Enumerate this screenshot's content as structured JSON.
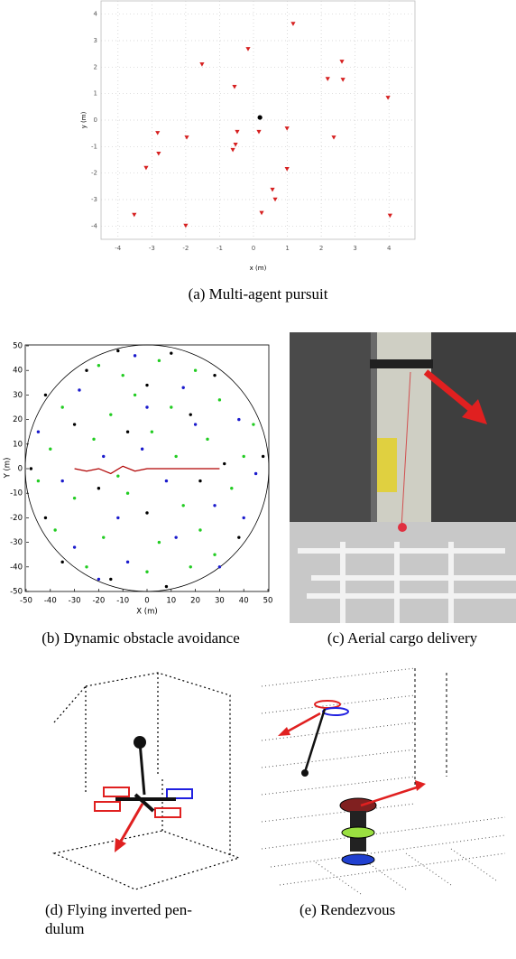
{
  "chart_data": [
    {
      "type": "scatter",
      "xlabel": "x (m)",
      "ylabel": "y (m)",
      "caption": "(a) Multi-agent pursuit",
      "xlim": [
        -4.5,
        4.5
      ],
      "ylim": [
        -4.5,
        4.5
      ],
      "xticks": [
        -4,
        -3,
        -2,
        -1,
        0,
        1,
        2,
        3,
        4
      ],
      "yticks": [
        -4,
        -3,
        -2,
        -1,
        0,
        1,
        2,
        3,
        4
      ],
      "grid": true,
      "series": [
        {
          "color": "#d62020",
          "marker": "triangle",
          "x": [
            1.17,
            -0.16,
            -1.52,
            2.61,
            2.19,
            2.64,
            -0.56,
            3.97,
            0.99,
            0.16,
            -0.48,
            -2.83,
            -1.97,
            2.37,
            -0.53,
            -0.61,
            -2.8,
            -3.17,
            0.99,
            0.56,
            0.64,
            0.24,
            -3.52,
            -2,
            4.03
          ],
          "y": [
            3.64,
            2.69,
            2.11,
            2.21,
            1.56,
            1.53,
            1.26,
            0.85,
            -0.31,
            -0.44,
            -0.44,
            -0.48,
            -0.65,
            -0.65,
            -0.92,
            -1.12,
            -1.26,
            -1.8,
            -1.84,
            -2.62,
            -2.99,
            -3.5,
            -3.57,
            -3.98,
            -3.6
          ]
        },
        {
          "color": "#000000",
          "marker": "dot",
          "x": [
            0.19
          ],
          "y": [
            0.1
          ]
        }
      ]
    },
    {
      "type": "scatter",
      "xlabel": "X (m)",
      "ylabel": "Y (m)",
      "caption": "(b) Dynamic obstacle avoidance",
      "xlim": [
        -50,
        50
      ],
      "ylim": [
        -50,
        50
      ],
      "xticks": [
        -50,
        -40,
        -30,
        -20,
        -10,
        0,
        10,
        20,
        30,
        40,
        50
      ],
      "yticks": [
        -50,
        -40,
        -30,
        -20,
        -10,
        0,
        10,
        20,
        30,
        40,
        50
      ],
      "grid": false,
      "series": [
        {
          "color": "#22cc22",
          "marker": "dot",
          "x": [
            -20,
            -10,
            5,
            20,
            -35,
            -15,
            10,
            30,
            -40,
            -22,
            2,
            25,
            40,
            -30,
            -8,
            15,
            35,
            -38,
            -18,
            5,
            22,
            -25,
            0,
            18,
            -5,
            12,
            -12,
            28,
            -45,
            44
          ],
          "y": [
            42,
            38,
            44,
            40,
            25,
            22,
            25,
            28,
            8,
            12,
            15,
            12,
            5,
            -12,
            -10,
            -15,
            -8,
            -25,
            -28,
            -30,
            -25,
            -40,
            -42,
            -40,
            30,
            5,
            -3,
            -35,
            -5,
            18
          ]
        },
        {
          "color": "#1a1acc",
          "marker": "dot",
          "x": [
            -5,
            15,
            -28,
            38,
            -45,
            -18,
            20,
            -35,
            8,
            45,
            -12,
            28,
            -30,
            12,
            -8,
            30,
            -2,
            -20,
            40,
            0
          ],
          "y": [
            46,
            33,
            32,
            20,
            15,
            5,
            18,
            -5,
            -5,
            -2,
            -20,
            -15,
            -32,
            -28,
            -38,
            -40,
            8,
            -45,
            -20,
            25
          ]
        },
        {
          "color": "#000000",
          "marker": "dot",
          "x": [
            -12,
            10,
            -25,
            28,
            -42,
            0,
            -30,
            18,
            -48,
            48,
            -20,
            22,
            -42,
            0,
            38,
            -15,
            8,
            -35,
            -8,
            32
          ],
          "y": [
            48,
            47,
            40,
            38,
            30,
            34,
            18,
            22,
            0,
            5,
            -8,
            -5,
            -20,
            -18,
            -28,
            -45,
            -48,
            -38,
            15,
            2
          ]
        },
        {
          "color": "#b00000",
          "marker": "line",
          "x": [
            -30,
            -25,
            -20,
            -15,
            -10,
            -5,
            0,
            5,
            10,
            20,
            30
          ],
          "y": [
            0,
            -1,
            0,
            -2,
            1,
            -1,
            0,
            0,
            0,
            0,
            0
          ]
        }
      ]
    }
  ],
  "panels": [
    {
      "caption": [
        "(c) Aerial cargo delivery"
      ]
    },
    {
      "caption": [
        "(d) Flying inverted pen-",
        "dulum"
      ]
    },
    {
      "caption": [
        "(e) Rendezvous"
      ]
    }
  ]
}
